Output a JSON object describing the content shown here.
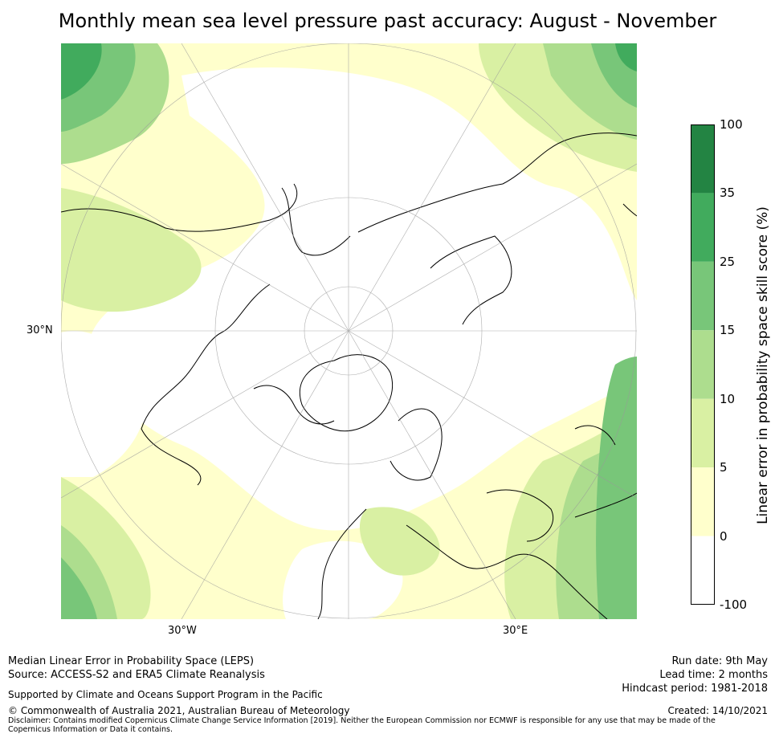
{
  "title": "Monthly mean sea level pressure past accuracy: August - November",
  "map": {
    "graticule_labels": {
      "left": "30°N",
      "bottom_left": "30°W",
      "bottom_right": "30°E"
    }
  },
  "colorbar": {
    "title": "Linear error in probability space skill score (%)",
    "ticks": [
      "100",
      "35",
      "25",
      "15",
      "10",
      "5",
      "0",
      "-100"
    ],
    "colors": [
      "#238443",
      "#41ab5d",
      "#78c679",
      "#addd8e",
      "#d9f0a3",
      "#ffffcc",
      "#ffffff"
    ]
  },
  "footer": {
    "line1": "Median Linear Error in Probability Space (LEPS)",
    "line2": "Source: ACCESS-S2 and ERA5 Climate Reanalysis",
    "supported": "Supported by Climate and Oceans Support Program in the Pacific",
    "copyright": "© Commonwealth of Australia 2021, Australian Bureau of Meteorology",
    "disclaimer": "Disclaimer: Contains modified Copernicus Climate Change Service Information [2019]. Neither the European Commission nor ECMWF is responsible for any use that may be made of the Copernicus Information or Data it contains.",
    "run_date": "Run date: 9th May",
    "lead_time": "Lead time: 2 months",
    "hindcast": "Hindcast period: 1981-2018",
    "created": "Created: 14/10/2021"
  }
}
